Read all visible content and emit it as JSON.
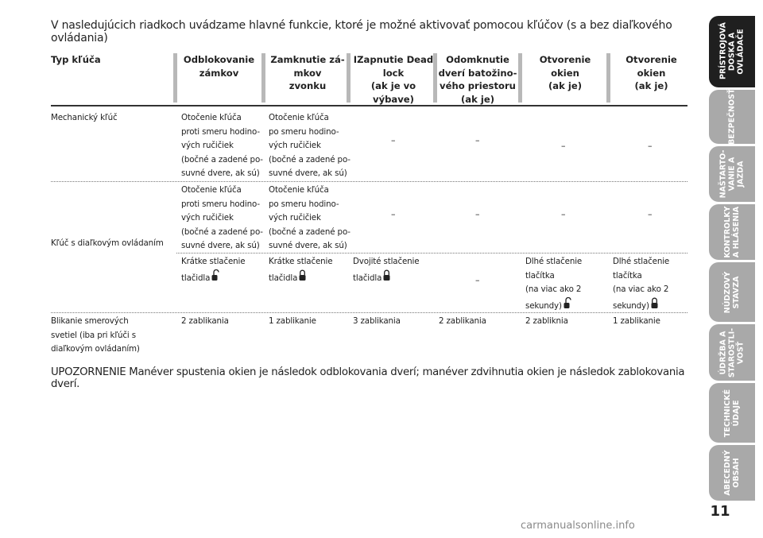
{
  "intro": "V nasledujúcich riadkoch uvádzame hlavné funkcie, ktoré je možné aktivovať pomocou kľúčov (s a bez diaľkového ovládania)",
  "table": {
    "headers": [
      "Typ kľúča",
      "Odblokovanie\nzámkov",
      "Zamknutie zá-\nmkov\nzvonku",
      "IZapnutie Dead\nlock\n(ak je vo výbave)",
      "Odomknutie\ndverí batožino-\nvého priestoru\n(ak je)",
      "Otvorenie okien\n(ak je)",
      "Otvorenie okien\n(ak je)"
    ],
    "rows": {
      "mechanical_key": {
        "label": "Mechanický kľúč",
        "unlock": "Otočenie kľúča\nproti smeru hodino-\nvých ručičiek\n(bočné a zadené po-\nsuvné dvere, ak sú)",
        "lock": "Otočenie kľúča\npo smeru hodino-\nvých ručičiek\n(bočné a zadené po-\nsuvné dvere, ak sú)",
        "deadlock": "–",
        "trunk": "–",
        "windows_open": "–",
        "windows_close": "–"
      },
      "remote_key": {
        "label": "Kľúč s diaľkovým ovládaním",
        "key_unlock": "Otočenie kľúča\nproti smeru hodino-\nvých ručičiek\n(bočné a zadené po-\nsuvné dvere, ak sú)",
        "key_lock": "Otočenie kľúča\npo smeru hodino-\nvých ručičiek\n(bočné a zadené po-\nsuvné dvere, ak sú)",
        "key_deadlock": "–",
        "key_trunk": "–",
        "key_windows_open": "–",
        "key_windows_close": "–",
        "btn_unlock": "Krátke stlačenie\ntlačidla",
        "btn_lock": "Krátke stlačenie\ntlačidla",
        "btn_deadlock": "Dvojité stlačenie\ntlačidla",
        "btn_trunk": "–",
        "btn_windows_open": "Dlhé stlačenie\ntlačítka\n(na viac ako 2\nsekundy)",
        "btn_windows_close": "Dlhé stlačenie\ntlačítka\n(na viac ako 2\nsekundy)"
      },
      "indicators": {
        "label": "Blikanie smerových\nsvetiel (iba pri kľúči s\ndiaľkovým ovládaním)",
        "unlock": "2 zablikania",
        "lock": "1 zablikanie",
        "deadlock": "3 zablikania",
        "trunk": "2 zablikania",
        "windows_open": "2 zabliknia",
        "windows_close": "1 zablikanie"
      }
    }
  },
  "warning": "UPOZORNENIE Manéver spustenia okien je následok odblokovania dverí; manéver zdvihnutia okien je následok zablokovania dverí.",
  "side_tabs": [
    {
      "label": "PRÍSTROJOVÁ\nDOSKA A\nOVLÁDAČE",
      "active": true
    },
    {
      "label": "BEZPEČNOSŤ",
      "active": false
    },
    {
      "label": "NAŠTARTO-\nVANIE A\nJAZDA",
      "active": false
    },
    {
      "label": "KONTROLKY\nA HLÁSENIA",
      "active": false
    },
    {
      "label": "NÚDZOVÝ\nSTAVZA",
      "active": false
    },
    {
      "label": "ÚDRŽBA A\nSTAROSTLI-\nVOSŤ",
      "active": false
    },
    {
      "label": "TECHNICKÉ\nÚDAJE",
      "active": false
    },
    {
      "label": "ABECEDNÝ\nOBSAH",
      "active": false
    }
  ],
  "icons": {
    "unlock_button": "open-padlock-icon",
    "lock_button": "closed-padlock-icon"
  },
  "colors": {
    "active_tab": "#1f1f1f",
    "inactive_tab": "#a9a9a9",
    "header_bar": "#b8b8b8"
  },
  "page_number": "11",
  "watermark": "carmanualsonline.info"
}
